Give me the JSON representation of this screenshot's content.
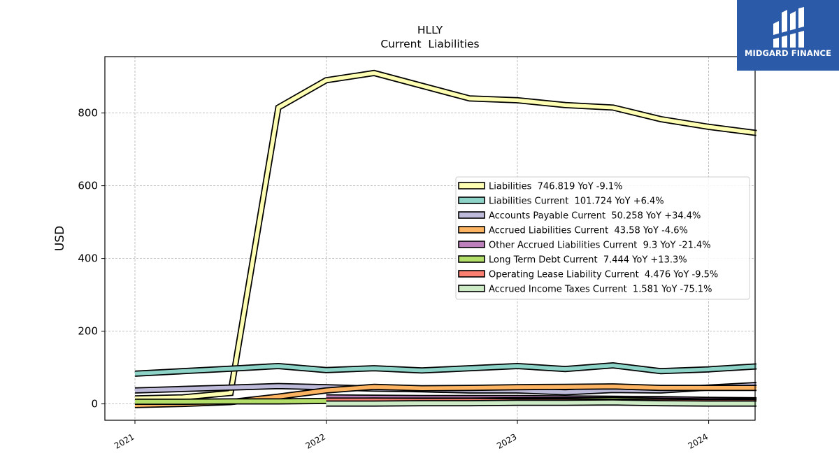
{
  "chart_data": {
    "type": "line",
    "title": "HLLY",
    "subtitle": "Current  Liabilities",
    "ylabel": "USD",
    "xlabel": "",
    "xlim": [
      2021.0,
      2024.4
    ],
    "ylim": [
      -45,
      955
    ],
    "yticks": [
      0,
      200,
      400,
      600,
      800
    ],
    "xticks": [
      2021,
      2022,
      2023,
      2024
    ],
    "grid": true,
    "legend_placement": "center-right",
    "series": [
      {
        "name": "Liabilities  746.819 YoY -9.1%",
        "color": "#ffffb3",
        "x": [
          2021.0,
          2021.25,
          2021.5,
          2021.75,
          2022.0,
          2022.25,
          2022.5,
          2022.75,
          2023.0,
          2023.25,
          2023.5,
          2023.75,
          2024.0,
          2024.25
        ],
        "y": [
          15,
          18,
          30,
          815,
          890,
          910,
          875,
          840,
          835,
          822,
          815,
          783,
          762,
          745
        ]
      },
      {
        "name": "Liabilities Current  101.724 YoY +6.4%",
        "color": "#8dd3c7",
        "x": [
          2021.0,
          2021.25,
          2021.5,
          2021.75,
          2022.0,
          2022.25,
          2022.5,
          2022.75,
          2023.0,
          2023.25,
          2023.5,
          2023.75,
          2024.0,
          2024.25
        ],
        "y": [
          83,
          90,
          97,
          104,
          93,
          98,
          92,
          98,
          104,
          96,
          106,
          90,
          95,
          103
        ]
      },
      {
        "name": "Accounts Payable Current  50.258 YoY +34.4%",
        "color": "#bebada",
        "x": [
          2021.0,
          2021.25,
          2021.5,
          2021.75,
          2022.0,
          2022.25,
          2022.5,
          2022.75,
          2023.0,
          2023.25,
          2023.5,
          2023.75,
          2024.0,
          2024.25
        ],
        "y": [
          37,
          41,
          45,
          49,
          46,
          42,
          40,
          37,
          37,
          32,
          38,
          37,
          45,
          52
        ]
      },
      {
        "name": "Accrued Liabilities Current  43.58 YoY -4.6%",
        "color": "#fdb462",
        "x": [
          2021.0,
          2021.25,
          2021.5,
          2021.75,
          2022.0,
          2022.25,
          2022.5,
          2022.75,
          2023.0,
          2023.25,
          2023.5,
          2023.75,
          2024.0,
          2024.25
        ],
        "y": [
          -3,
          0,
          5,
          20,
          37,
          47,
          43,
          44,
          46,
          47,
          48,
          44,
          44,
          44
        ]
      },
      {
        "name": "Other Accrued Liabilities Current  9.3 YoY -21.4%",
        "color": "#bc80bd",
        "x": [
          2022.0,
          2022.25,
          2022.5,
          2022.75,
          2023.0,
          2023.25,
          2023.5,
          2023.75,
          2024.0,
          2024.25
        ],
        "y": [
          18,
          17,
          16,
          16,
          16,
          15,
          14,
          13,
          11,
          10
        ]
      },
      {
        "name": "Long Term Debt Current  7.444 YoY +13.3%",
        "color": "#b3de69",
        "x": [
          2021.0,
          2021.25,
          2021.5,
          2021.75,
          2022.0,
          2022.25,
          2022.5,
          2022.75,
          2023.0,
          2023.25,
          2023.5,
          2023.75,
          2024.0,
          2024.25
        ],
        "y": [
          6,
          6,
          7,
          7,
          8,
          9,
          9,
          9,
          10,
          10,
          11,
          9,
          7,
          8
        ]
      },
      {
        "name": "Operating Lease Liability Current  4.476 YoY -9.5%",
        "color": "#fb8072",
        "x": [
          2022.0,
          2022.25,
          2022.5,
          2022.75,
          2023.0,
          2023.25,
          2023.5,
          2023.75,
          2024.0,
          2024.25
        ],
        "y": [
          9,
          9,
          8,
          8,
          7,
          7,
          6,
          6,
          5,
          5
        ]
      },
      {
        "name": "Accrued Income Taxes Current  1.581 YoY -75.1%",
        "color": "#ccebc5",
        "x": [
          2022.0,
          2022.25,
          2022.5,
          2022.75,
          2023.0,
          2023.25,
          2023.5,
          2023.75,
          2024.0,
          2024.25
        ],
        "y": [
          1,
          1,
          2,
          2,
          3,
          3,
          4,
          2,
          1,
          1
        ]
      }
    ]
  },
  "logo": {
    "text": "MIDGARD FINANCE",
    "background": "#2b5aa8"
  }
}
